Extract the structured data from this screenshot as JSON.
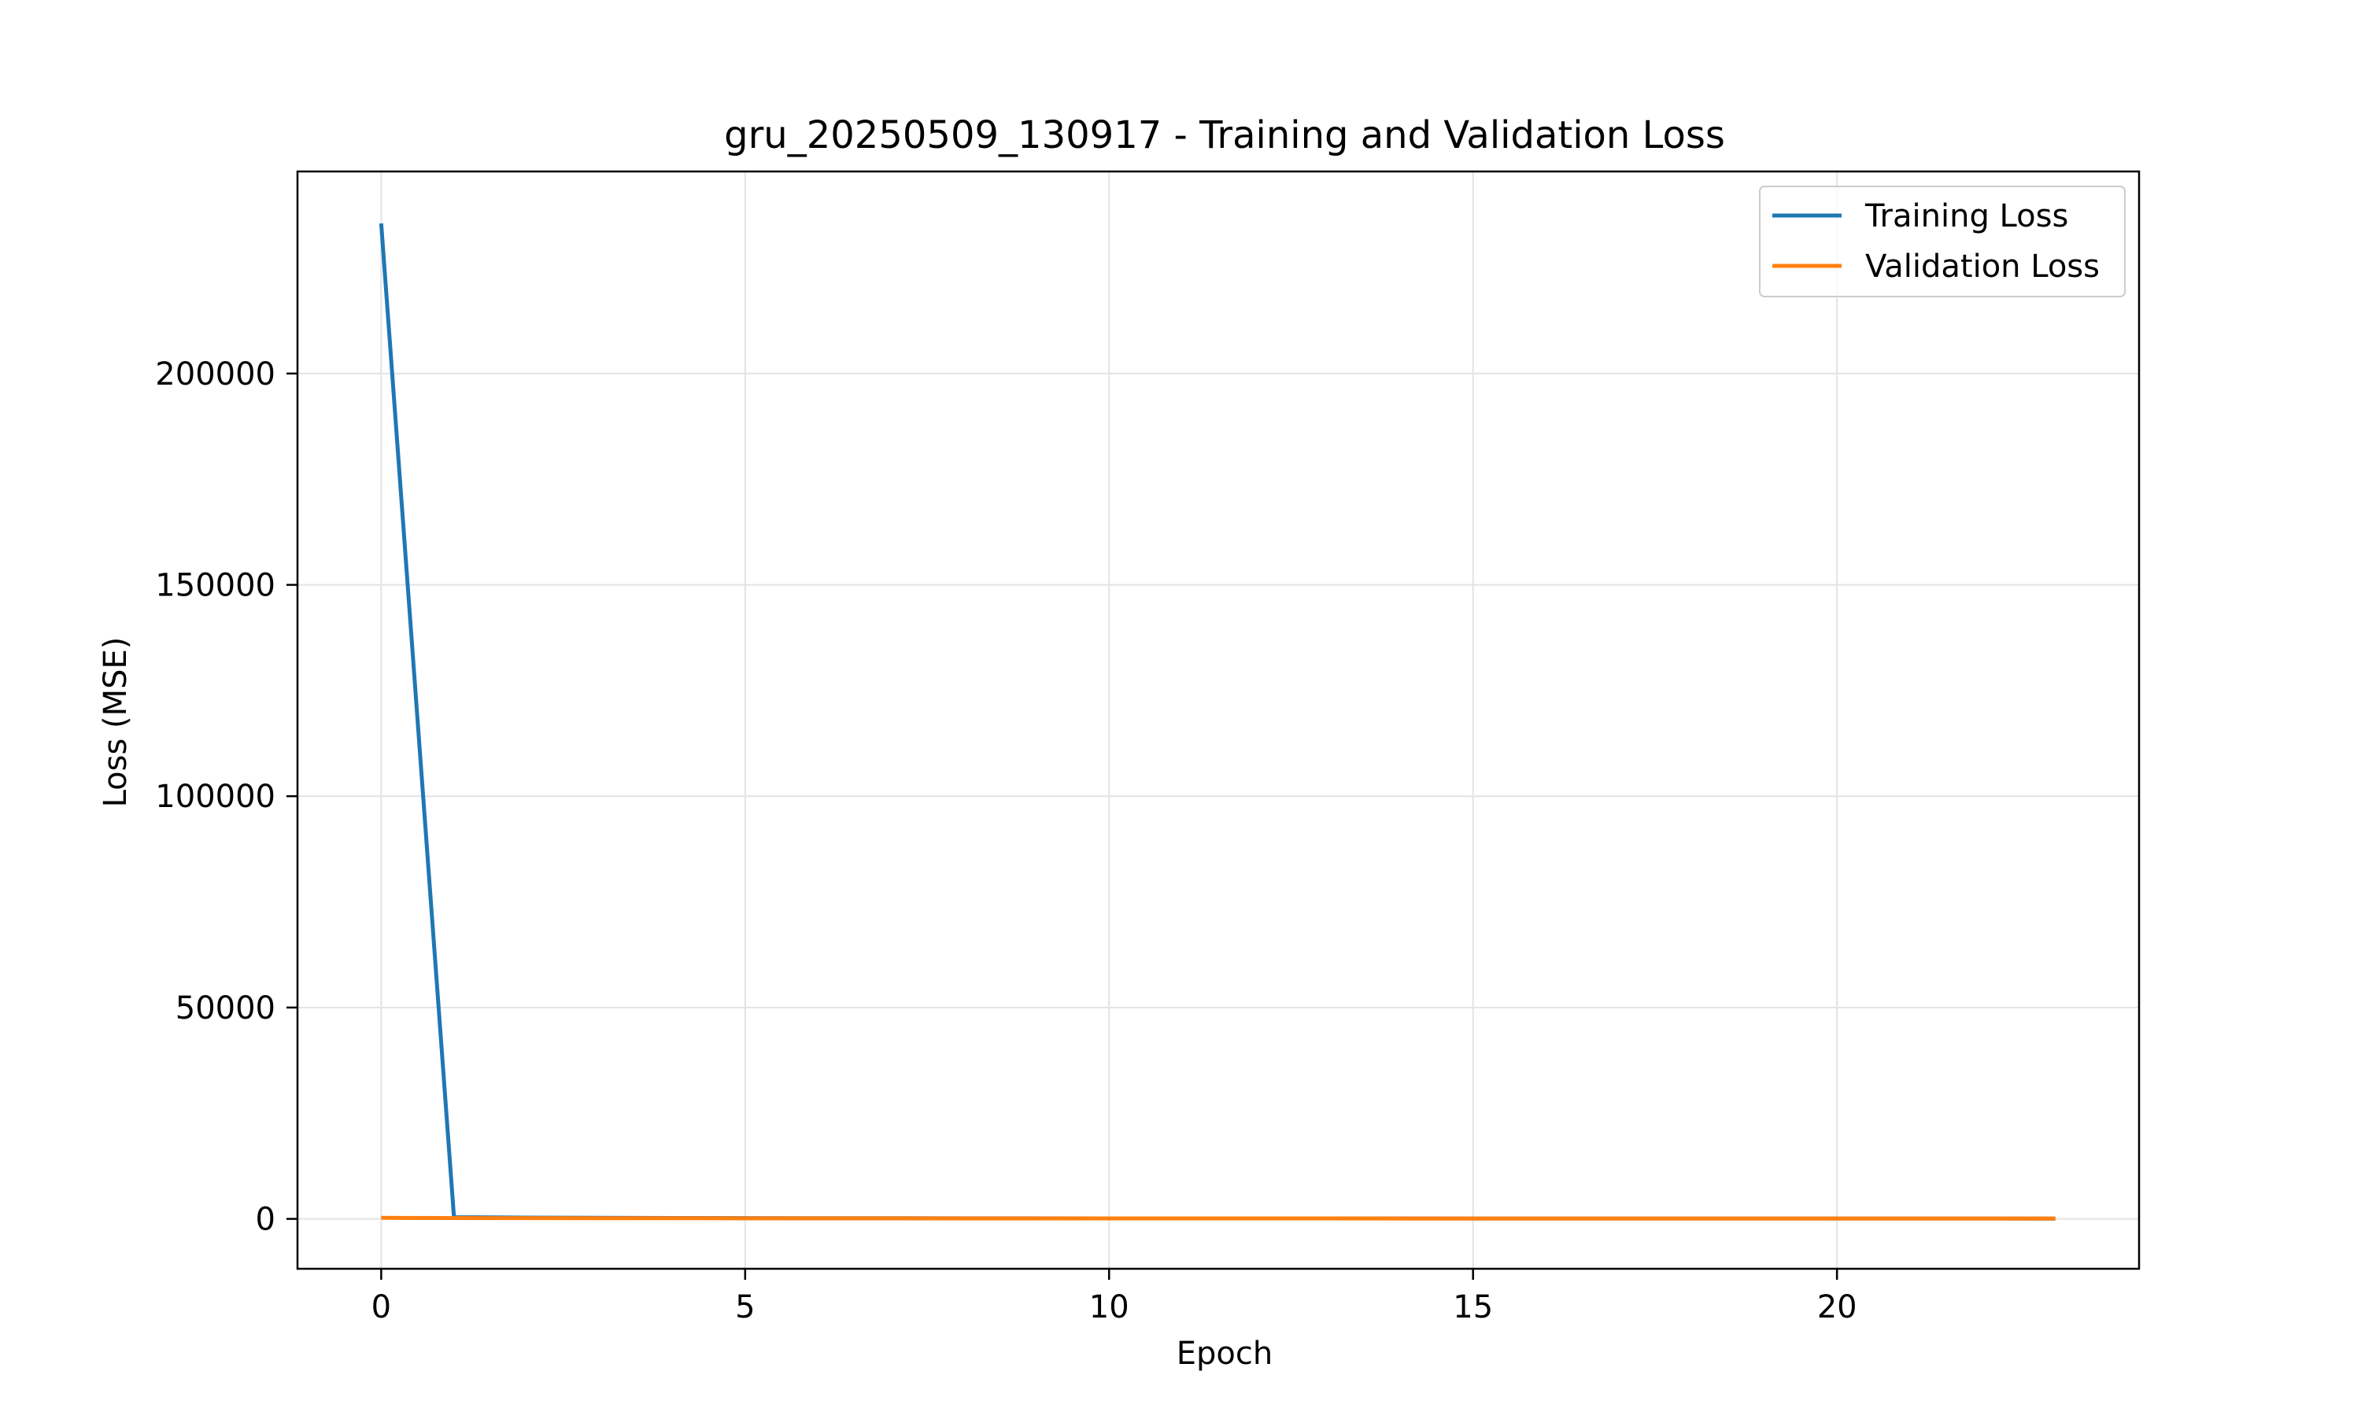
{
  "chart_data": {
    "type": "line",
    "title": "gru_20250509_130917 - Training and Validation Loss",
    "xlabel": "Epoch",
    "ylabel": "Loss (MSE)",
    "xlim": [
      -1.15,
      24.15
    ],
    "ylim": [
      -11800,
      247800
    ],
    "xticks": [
      0,
      5,
      10,
      15,
      20
    ],
    "xtick_labels": [
      "0",
      "5",
      "10",
      "15",
      "20"
    ],
    "yticks": [
      0,
      50000,
      100000,
      150000,
      200000
    ],
    "ytick_labels": [
      "0",
      "50000",
      "100000",
      "150000",
      "200000"
    ],
    "grid": true,
    "legend_position": "top-right",
    "x": [
      0,
      1,
      2,
      3,
      4,
      5,
      6,
      7,
      8,
      9,
      10,
      11,
      12,
      13,
      14,
      15,
      16,
      17,
      18,
      19,
      20,
      21,
      22,
      23
    ],
    "series": [
      {
        "name": "Training Loss",
        "color": "#1f77b4",
        "values": [
          235500,
          400,
          300,
          250,
          200,
          180,
          160,
          150,
          140,
          130,
          120,
          115,
          110,
          105,
          100,
          95,
          90,
          88,
          85,
          82,
          80,
          78,
          76,
          75
        ]
      },
      {
        "name": "Validation Loss",
        "color": "#ff7f0e",
        "values": [
          250,
          200,
          180,
          160,
          150,
          140,
          130,
          125,
          120,
          115,
          110,
          105,
          100,
          98,
          95,
          92,
          90,
          88,
          86,
          84,
          82,
          80,
          79,
          78
        ]
      }
    ]
  }
}
